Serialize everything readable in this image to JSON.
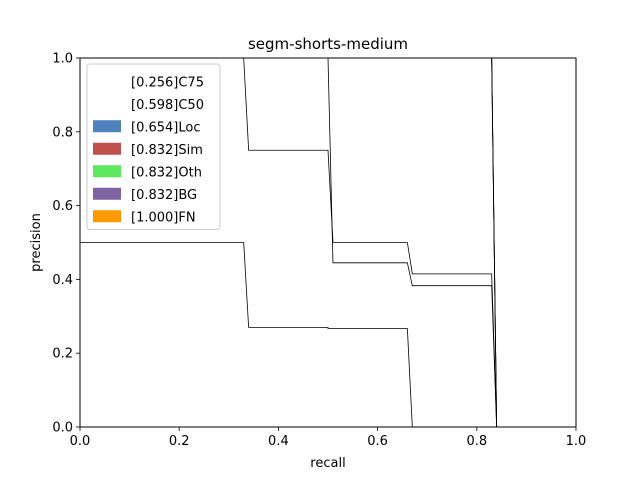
{
  "chart_data": {
    "type": "area",
    "title": "segm-shorts-medium",
    "xlabel": "recall",
    "ylabel": "precision",
    "xlim": [
      0,
      1
    ],
    "ylim": [
      0,
      1
    ],
    "x_ticks": [
      "0.0",
      "0.2",
      "0.4",
      "0.6",
      "0.8",
      "1.0"
    ],
    "y_ticks": [
      "0.0",
      "0.2",
      "0.4",
      "0.6",
      "0.8",
      "1.0"
    ],
    "grid": false,
    "legend_position": "top-left",
    "series": [
      {
        "name": "[0.256]C75",
        "color": "#ffffff",
        "points": [
          [
            0,
            0.5
          ],
          [
            0.33,
            0.5
          ],
          [
            0.34,
            0.27
          ],
          [
            0.5,
            0.27
          ],
          [
            0.5,
            0.267
          ],
          [
            0.66,
            0.267
          ],
          [
            0.67,
            0.0
          ]
        ]
      },
      {
        "name": "[0.598]C50",
        "color": "#ffffff",
        "points": [
          [
            0.33,
            1.0
          ],
          [
            0.34,
            0.75
          ],
          [
            0.5,
            0.75
          ],
          [
            0.51,
            0.5
          ],
          [
            0.66,
            0.5
          ],
          [
            0.67,
            0.415
          ],
          [
            0.83,
            0.415
          ],
          [
            0.84,
            0.0
          ]
        ]
      },
      {
        "name": "[0.654]Loc",
        "color": "#4f81bd",
        "points": [
          [
            0.5,
            1.0
          ],
          [
            0.51,
            0.445
          ],
          [
            0.66,
            0.445
          ],
          [
            0.67,
            0.383
          ],
          [
            0.83,
            0.383
          ],
          [
            0.84,
            0.0
          ]
        ]
      },
      {
        "name": "[0.832]Sim",
        "color": "#c0504d",
        "points": [
          [
            0.83,
            1.0
          ],
          [
            0.84,
            0.0
          ]
        ]
      },
      {
        "name": "[0.832]Oth",
        "color": "#5ee85e",
        "points": [
          [
            0.83,
            1.0
          ],
          [
            0.84,
            0.0
          ]
        ]
      },
      {
        "name": "[0.832]BG",
        "color": "#8064a2",
        "points": [
          [
            0.83,
            1.0
          ],
          [
            0.84,
            0.0
          ]
        ]
      },
      {
        "name": "[1.000]FN",
        "color": "#ff9900",
        "points": [
          [
            1.0,
            1.0
          ],
          [
            1.0,
            0.0
          ]
        ]
      }
    ]
  }
}
